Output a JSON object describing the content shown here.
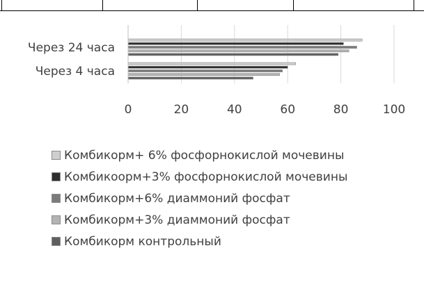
{
  "chart_data": {
    "type": "bar",
    "orientation": "horizontal",
    "categories": [
      "Через 4 часа",
      "Через 24 часа"
    ],
    "series": [
      {
        "name": "Комбикорм контрольный",
        "color": "#5f5f5f",
        "values": [
          47,
          79
        ]
      },
      {
        "name": "Комбикорм+3% диаммоний фосфат",
        "color": "#b3b3b3",
        "values": [
          57,
          83
        ]
      },
      {
        "name": "Комбикорм+6% диаммоний фосфат",
        "color": "#7b7b7b",
        "values": [
          58,
          86
        ]
      },
      {
        "name": "Комбикоорм+3% фосфорнокислой мочевины",
        "color": "#2e2e2e",
        "values": [
          60,
          81
        ]
      },
      {
        "name": "Комбикорм+ 6% фосфорнокислой мочевины",
        "color": "#cfcfcf",
        "values": [
          63,
          88
        ]
      }
    ],
    "xlim": [
      0,
      100
    ],
    "xticks": [
      "0",
      "20",
      "40",
      "60",
      "80",
      "100"
    ],
    "grid": true,
    "legend_position": "bottom"
  }
}
